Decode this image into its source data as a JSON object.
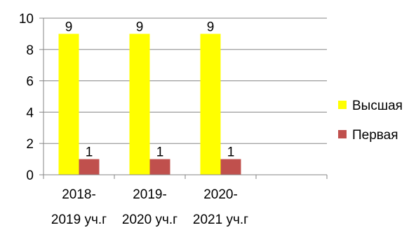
{
  "chart_data": {
    "type": "bar",
    "categories": [
      [
        "2018-",
        "2019 уч.г"
      ],
      [
        "2019-",
        "2020 уч.г"
      ],
      [
        "2020-",
        "2021 уч.г"
      ],
      [
        "",
        ""
      ]
    ],
    "series": [
      {
        "name": "Высшая",
        "values": [
          9,
          9,
          9,
          null
        ],
        "color": "#FFFF00"
      },
      {
        "name": "Первая",
        "values": [
          1,
          1,
          1,
          null
        ],
        "color": "#C0504D"
      }
    ],
    "y_ticks": [
      0,
      2,
      4,
      6,
      8,
      10
    ],
    "ylim": [
      0,
      10
    ],
    "title": "",
    "xlabel": "",
    "ylabel": "",
    "grid": true,
    "legend_position": "right"
  }
}
